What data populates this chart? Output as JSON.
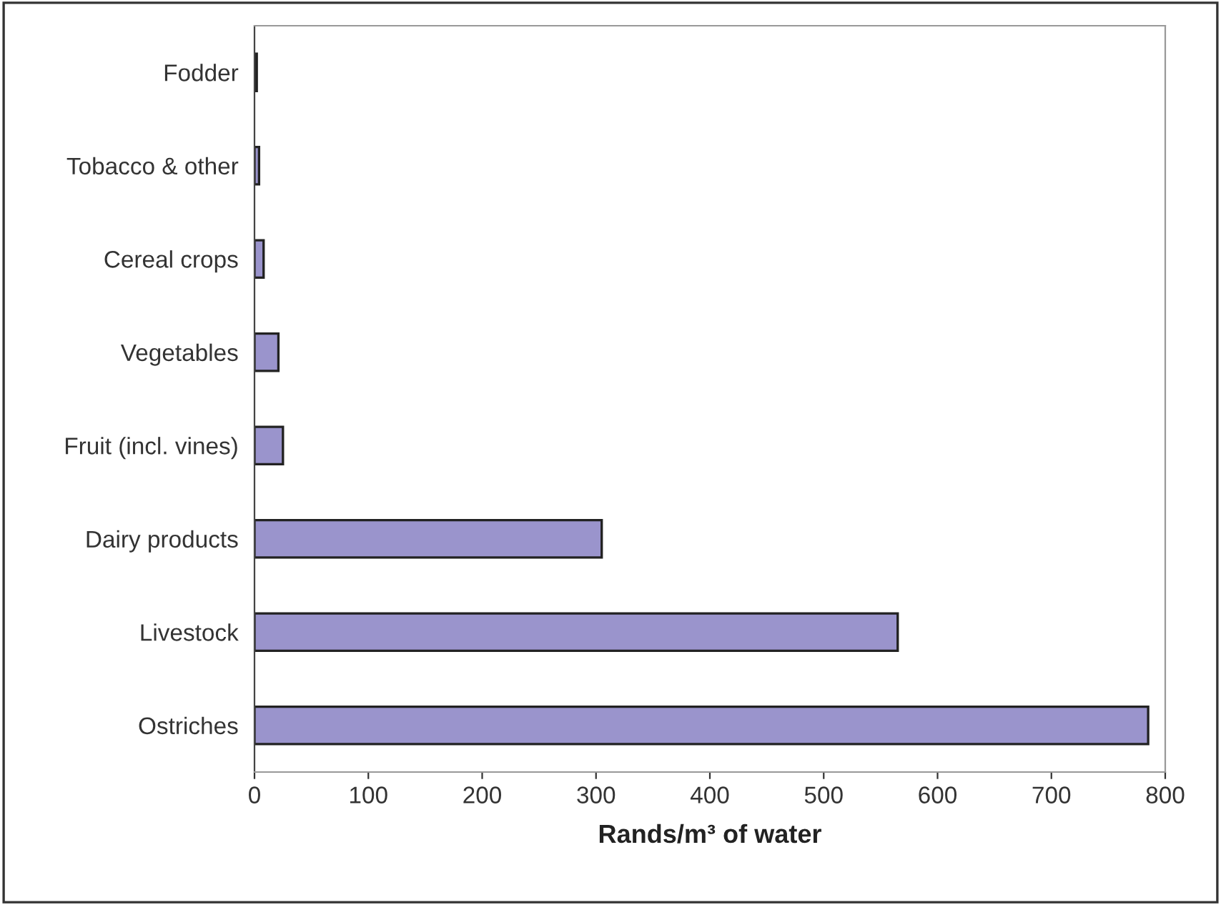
{
  "chart_data": {
    "type": "bar",
    "orientation": "horizontal",
    "xlabel": "Rands/m³ of water",
    "categories": [
      "Fodder",
      "Tobacco & other",
      "Cereal crops",
      "Vegetables",
      "Fruit (incl. vines)",
      "Dairy products",
      "Livestock",
      "Ostriches"
    ],
    "values": [
      2,
      4,
      8,
      21,
      25,
      305,
      565,
      785
    ],
    "color": "#9a94cc",
    "xlim": [
      0,
      800
    ],
    "xticks": [
      0,
      100,
      200,
      300,
      400,
      500,
      600,
      700,
      800
    ],
    "grid": false
  }
}
